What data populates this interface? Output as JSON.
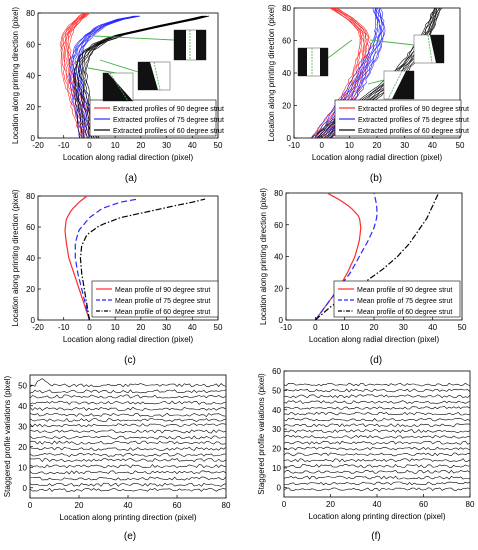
{
  "figure": {
    "panel_labels": [
      "(a)",
      "(b)",
      "(c)",
      "(d)",
      "(e)",
      "(f)"
    ]
  },
  "chart_data": [
    {
      "panel": "(a)",
      "type": "line",
      "xlabel": "Location along radial direction (pixel)",
      "ylabel": "Location along printing direction (pixel)",
      "xlim": [
        -20,
        50
      ],
      "ylim": [
        0,
        80
      ],
      "xticks": [
        -20,
        -10,
        0,
        10,
        20,
        30,
        40,
        50
      ],
      "yticks": [
        0,
        20,
        40,
        60,
        80
      ],
      "legend_position": "lower-right",
      "grid": false,
      "series": [
        {
          "name": "Extracted profiles of 90 degree strut",
          "color": "#ff2a2a",
          "style": "solid-multi",
          "x": [
            0,
            -2,
            -4,
            -6,
            -8,
            -9,
            -9.5,
            -9,
            -7,
            -4,
            -1
          ],
          "y": [
            0,
            10,
            20,
            30,
            40,
            50,
            58,
            65,
            71,
            76,
            80
          ]
        },
        {
          "name": "Extracted profiles of 75 degree strut",
          "color": "#2828ff",
          "style": "solid-multi",
          "x": [
            0,
            -1.5,
            -3,
            -4.5,
            -5.5,
            -5.5,
            -4,
            0,
            5,
            12,
            22
          ],
          "y": [
            0,
            10,
            20,
            30,
            40,
            50,
            58,
            66,
            72,
            76,
            79
          ]
        },
        {
          "name": "Extracted profiles of 60 degree strut",
          "color": "#000000",
          "style": "solid-multi",
          "x": [
            0,
            -1,
            -2,
            -3,
            -3.5,
            -3,
            -1,
            4,
            12,
            23,
            34,
            43,
            47
          ],
          "y": [
            0,
            10,
            20,
            30,
            40,
            48,
            55,
            61,
            66,
            70,
            74,
            77,
            79
          ]
        }
      ]
    },
    {
      "panel": "(b)",
      "type": "line",
      "xlabel": "Location along radial direction (pixel)",
      "ylabel": "Location along printing direction (pixel)",
      "xlim": [
        -10,
        50
      ],
      "ylim": [
        0,
        80
      ],
      "xticks": [
        -10,
        0,
        10,
        20,
        30,
        40,
        50
      ],
      "yticks": [
        0,
        20,
        40,
        60,
        80
      ],
      "legend_position": "lower-right",
      "grid": false,
      "series": [
        {
          "name": "Extracted profiles of 90 degree strut",
          "color": "#ff2a2a",
          "style": "solid-multi",
          "x": [
            0,
            4,
            8,
            11,
            13.5,
            15,
            15.5,
            15,
            12,
            8,
            4
          ],
          "y": [
            0,
            10,
            20,
            30,
            40,
            50,
            58,
            65,
            71,
            76,
            80
          ]
        },
        {
          "name": "Extracted profiles of 75 degree strut",
          "color": "#2828ff",
          "style": "solid-multi",
          "x": [
            0,
            4,
            8,
            12,
            15,
            18,
            20,
            21,
            21,
            20.5,
            20
          ],
          "y": [
            0,
            10,
            20,
            30,
            40,
            50,
            58,
            65,
            71,
            76,
            80
          ]
        },
        {
          "name": "Extracted profiles of 60 degree strut",
          "color": "#000000",
          "style": "solid-multi",
          "x": [
            0,
            5,
            11,
            17,
            23,
            28,
            32,
            35,
            38,
            40,
            42
          ],
          "y": [
            0,
            8,
            16,
            24,
            32,
            40,
            48,
            56,
            64,
            72,
            80
          ]
        }
      ]
    },
    {
      "panel": "(c)",
      "type": "line",
      "xlabel": "Location along radial direction (pixel)",
      "ylabel": "Location along printing direction (pixel)",
      "xlim": [
        -20,
        50
      ],
      "ylim": [
        0,
        80
      ],
      "xticks": [
        -20,
        -10,
        0,
        10,
        20,
        30,
        40,
        50
      ],
      "yticks": [
        0,
        20,
        40,
        60,
        80
      ],
      "legend_position": "lower-right",
      "grid": false,
      "series": [
        {
          "name": "Mean profile of 90 degree strut",
          "color": "#ff2a2a",
          "style": "solid",
          "x": [
            0,
            -2,
            -4,
            -6,
            -8,
            -9,
            -9.5,
            -9,
            -7,
            -4,
            -1
          ],
          "y": [
            0,
            10,
            20,
            30,
            40,
            50,
            58,
            65,
            71,
            76,
            80
          ]
        },
        {
          "name": "Mean profile of 75 degree strut",
          "color": "#2828ff",
          "style": "dashed",
          "x": [
            0,
            -1.5,
            -3,
            -4.5,
            -5.5,
            -5.5,
            -4,
            0,
            5,
            12,
            22
          ],
          "y": [
            0,
            10,
            20,
            30,
            40,
            50,
            58,
            66,
            72,
            76,
            79
          ]
        },
        {
          "name": "Mean profile of 60 degree strut",
          "color": "#000000",
          "style": "dashdot",
          "x": [
            0,
            -1,
            -2,
            -3,
            -3.5,
            -3,
            -1,
            4,
            12,
            23,
            34,
            43,
            47
          ],
          "y": [
            0,
            10,
            20,
            30,
            40,
            48,
            55,
            61,
            66,
            70,
            74,
            77,
            79
          ]
        }
      ]
    },
    {
      "panel": "(d)",
      "type": "line",
      "xlabel": "Location along radial direction (pixel)",
      "ylabel": "Location along printing direction (pixel)",
      "xlim": [
        -10,
        50
      ],
      "ylim": [
        0,
        80
      ],
      "xticks": [
        -10,
        0,
        10,
        20,
        30,
        40,
        50
      ],
      "yticks": [
        0,
        20,
        40,
        60,
        80
      ],
      "legend_position": "lower-right",
      "grid": false,
      "series": [
        {
          "name": "Mean profile of 90 degree strut",
          "color": "#ff2a2a",
          "style": "solid",
          "x": [
            0,
            4,
            8,
            11,
            13.5,
            15,
            15.5,
            15,
            12,
            8,
            4
          ],
          "y": [
            0,
            10,
            20,
            30,
            40,
            50,
            58,
            65,
            71,
            76,
            80
          ]
        },
        {
          "name": "Mean profile of 75 degree strut",
          "color": "#2828ff",
          "style": "dashed",
          "x": [
            0,
            4,
            8,
            12,
            15,
            18,
            20,
            21,
            21,
            20.5,
            20
          ],
          "y": [
            0,
            10,
            20,
            30,
            40,
            50,
            58,
            65,
            71,
            76,
            80
          ]
        },
        {
          "name": "Mean profile of 60 degree strut",
          "color": "#000000",
          "style": "dashdot",
          "x": [
            0,
            5,
            11,
            17,
            23,
            28,
            32,
            35,
            38,
            40,
            42
          ],
          "y": [
            0,
            8,
            16,
            24,
            32,
            40,
            48,
            56,
            64,
            72,
            80
          ]
        }
      ]
    },
    {
      "panel": "(e)",
      "type": "line",
      "xlabel": "Location along printing direction (pixel)",
      "ylabel": "Staggered profile variations (pixel)",
      "xlim": [
        0,
        80
      ],
      "ylim": [
        -5,
        55
      ],
      "xticks": [
        0,
        20,
        40,
        60,
        80
      ],
      "yticks": [
        0,
        10,
        20,
        30,
        40,
        50
      ],
      "grid": false,
      "staggered_offsets": [
        -1,
        1.5,
        4.5,
        7.5,
        10.5,
        13.5,
        16,
        19,
        22,
        24.5,
        27.5,
        30.5,
        33,
        35.5,
        38.5,
        41.5,
        44.5,
        47,
        50
      ],
      "line_color": "#000000"
    },
    {
      "panel": "(f)",
      "type": "line",
      "xlabel": "Location along printing direction (pixel)",
      "ylabel": "Staggered profile variations (pixel)",
      "xlim": [
        0,
        80
      ],
      "ylim": [
        -5,
        60
      ],
      "xticks": [
        0,
        20,
        40,
        60,
        80
      ],
      "yticks": [
        0,
        10,
        20,
        30,
        40,
        50,
        60
      ],
      "grid": false,
      "staggered_offsets": [
        -1,
        2,
        5,
        8,
        11,
        14,
        17,
        20,
        23,
        26,
        29,
        32,
        35,
        38,
        41,
        44,
        47,
        50,
        53
      ],
      "line_color": "#000000"
    }
  ]
}
